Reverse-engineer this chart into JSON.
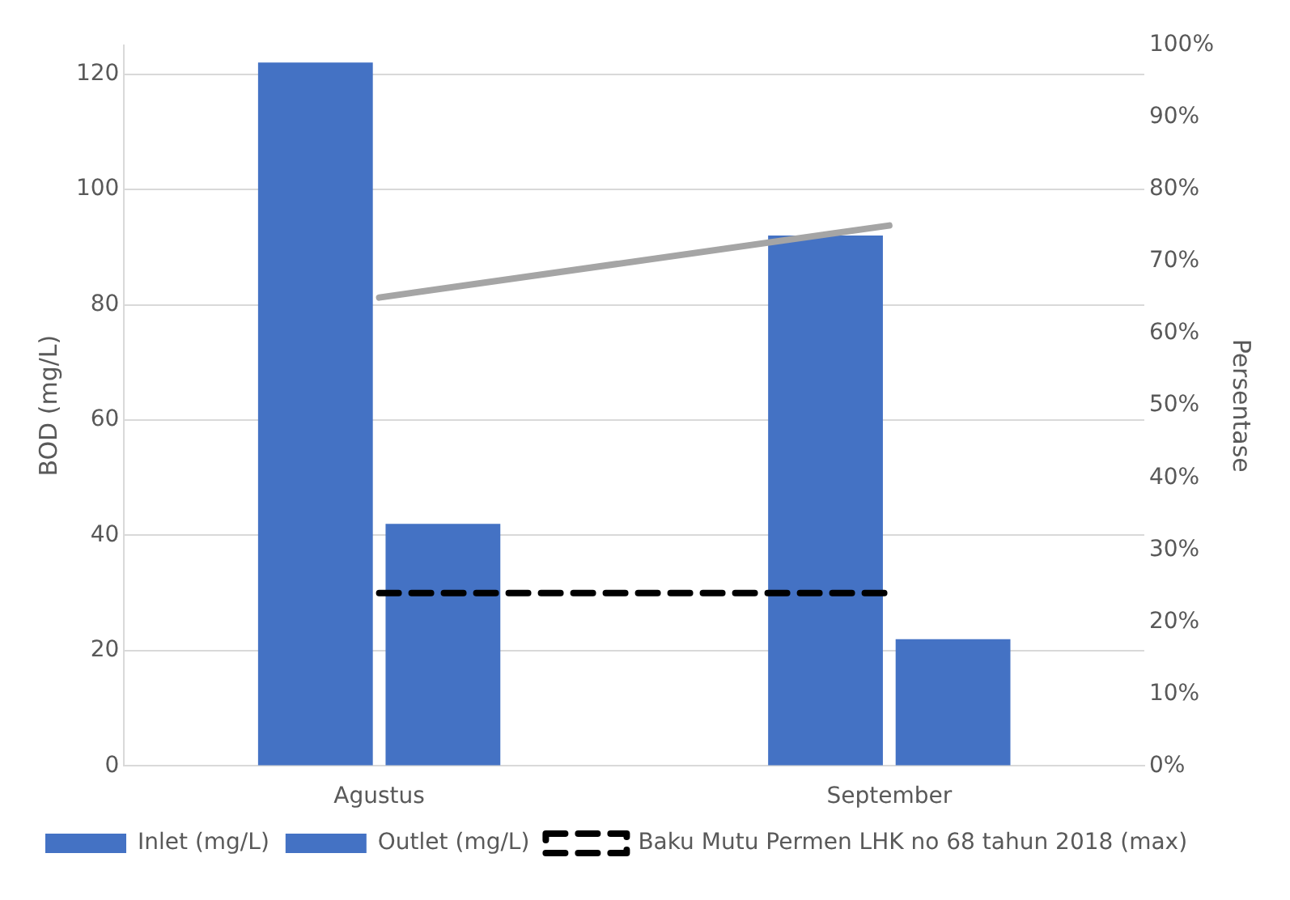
{
  "chart_data": {
    "type": "bar",
    "categories": [
      "Agustus",
      "September"
    ],
    "ylabel": "BOD (mg/L)",
    "y2label": "Persentase",
    "series": [
      {
        "name": "Inlet (mg/L)",
        "color": "#4472c4",
        "values": [
          122,
          92
        ]
      },
      {
        "name": "Outlet (mg/L)",
        "color": "#4472c4",
        "values": [
          42,
          22
        ]
      },
      {
        "name": "Baku Mutu Permen LHK no 68 tahun 2018 (max)",
        "type": "line",
        "color": "#000000",
        "line_style": "dashed",
        "values": [
          30,
          30
        ]
      },
      {
        "type": "line",
        "axis": "y2",
        "color": "#a5a5a5",
        "values": [
          65,
          75
        ]
      }
    ],
    "ylim": [
      0,
      125
    ],
    "yticks": [
      0,
      20,
      40,
      60,
      80,
      100,
      120
    ],
    "y2lim": [
      0,
      100
    ],
    "y2ticks": [
      {
        "value": 0,
        "label": "0%"
      },
      {
        "value": 10,
        "label": "10%"
      },
      {
        "value": 20,
        "label": "20%"
      },
      {
        "value": 30,
        "label": "30%"
      },
      {
        "value": 40,
        "label": "40%"
      },
      {
        "value": 50,
        "label": "50%"
      },
      {
        "value": 60,
        "label": "60%"
      },
      {
        "value": 70,
        "label": "70%"
      },
      {
        "value": 80,
        "label": "80%"
      },
      {
        "value": 90,
        "label": "90%"
      },
      {
        "value": 100,
        "label": "100%"
      }
    ],
    "grid": "y",
    "legend": "bottom",
    "marker": "none"
  }
}
